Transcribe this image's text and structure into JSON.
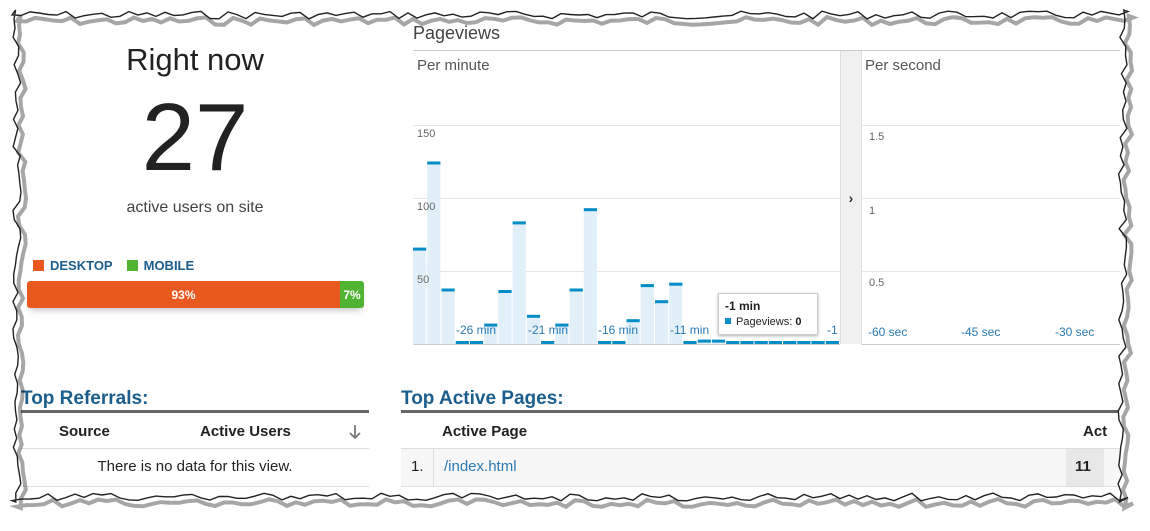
{
  "right_now": {
    "title": "Right now",
    "count": "27",
    "subtitle": "active users on site",
    "legend": [
      {
        "label": "DESKTOP",
        "color": "#e8581f"
      },
      {
        "label": "MOBILE",
        "color": "#50b432"
      }
    ],
    "split": [
      {
        "label": "93%",
        "value": 93,
        "color": "#e8581f"
      },
      {
        "label": "7%",
        "value": 7,
        "color": "#50b432"
      }
    ]
  },
  "pageviews": {
    "title": "Pageviews",
    "per_minute_label": "Per minute",
    "per_second_label": "Per second",
    "collapse_icon": "chevron-right-icon",
    "tooltip": {
      "title": "-1 min",
      "series": "Pageviews",
      "value": "0"
    }
  },
  "chart_data": [
    {
      "type": "bar",
      "title": "Per minute",
      "series": [
        {
          "name": "Pageviews",
          "values": [
            66,
            125,
            38,
            0,
            0,
            14,
            37,
            84,
            20,
            0,
            14,
            38,
            93,
            0,
            0,
            17,
            41,
            30,
            42,
            2,
            3,
            3,
            0,
            0,
            0,
            0,
            0,
            0,
            0,
            0
          ]
        }
      ],
      "ylim": [
        0,
        150
      ],
      "yticks": [
        50,
        100,
        150
      ],
      "xticks": [
        {
          "label": "-26 min",
          "index": 4
        },
        {
          "label": "-21 min",
          "index": 9
        },
        {
          "label": "-16 min",
          "index": 14
        },
        {
          "label": "-11 min",
          "index": 19
        },
        {
          "label": "-1",
          "index": 29
        }
      ],
      "color": "#058dc7"
    },
    {
      "type": "bar",
      "title": "Per second",
      "ylim": [
        0,
        1.5
      ],
      "yticks": [
        0.5,
        1,
        1.5
      ],
      "xticks": [
        "-60 sec",
        "-45 sec",
        "-30 sec"
      ]
    }
  ],
  "top_referrals": {
    "title": "Top Referrals:",
    "columns": [
      "Source",
      "Active Users"
    ],
    "sort_icon": "arrow-down-icon",
    "empty_text": "There is no data for this view."
  },
  "top_active_pages": {
    "title": "Top Active Pages:",
    "columns": [
      "Active Page",
      "Act"
    ],
    "rows": [
      {
        "index": "1.",
        "page": "/index.html",
        "users": "11"
      }
    ]
  }
}
